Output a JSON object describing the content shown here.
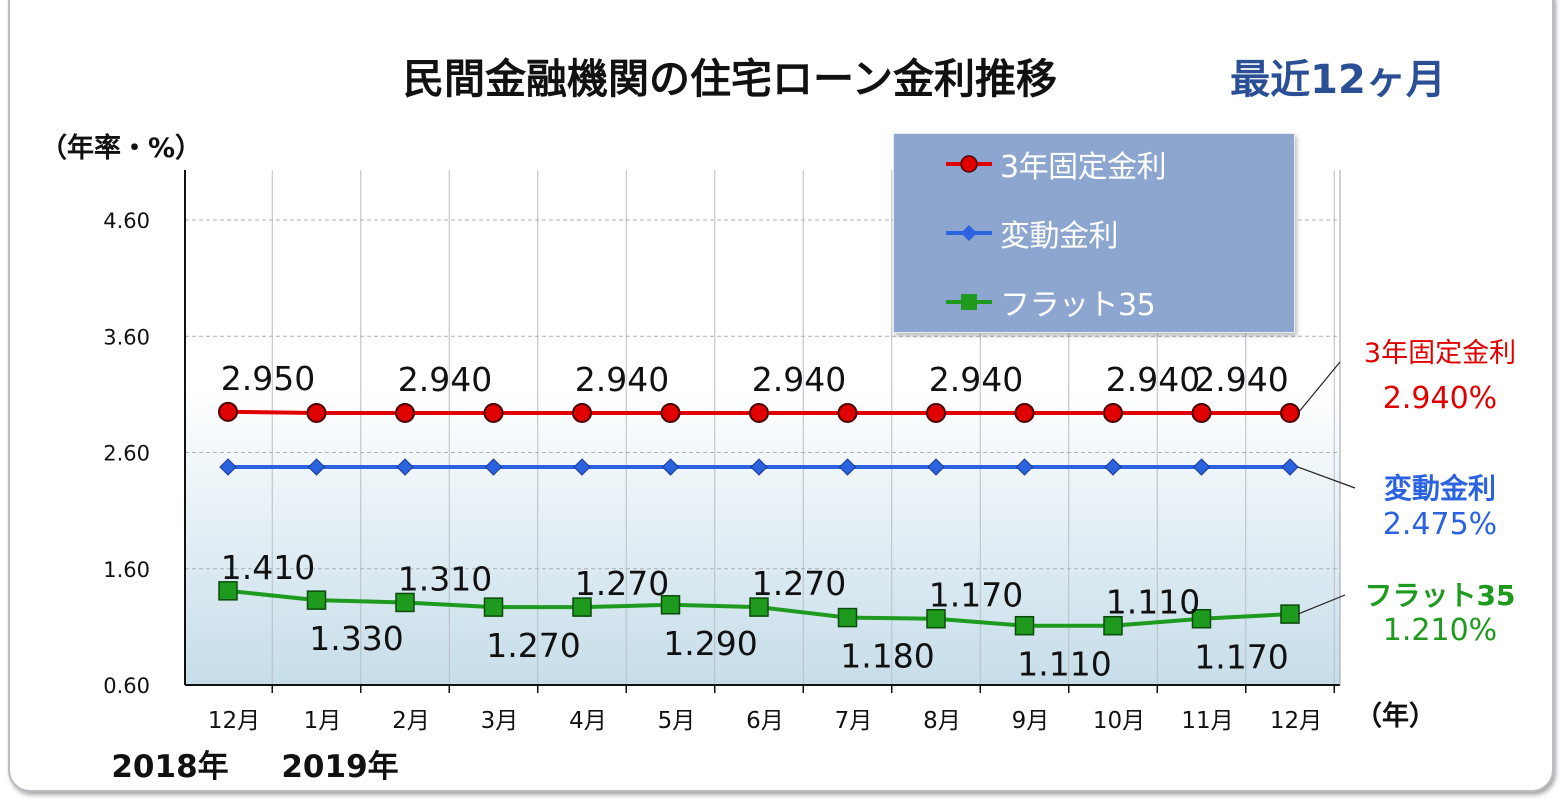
{
  "chart_data": {
    "type": "line",
    "title": "民間金融機関の住宅ローン金利推移",
    "subtitle": "最近12ヶ月",
    "ylabel": "（年率・%）",
    "xlabel": "（年）",
    "ylim": [
      0.6,
      4.6
    ],
    "yticks": [
      "0.60",
      "1.60",
      "2.60",
      "3.60",
      "4.60"
    ],
    "categories": [
      "12月",
      "1月",
      "2月",
      "3月",
      "4月",
      "5月",
      "6月",
      "7月",
      "8月",
      "9月",
      "10月",
      "11月",
      "12月"
    ],
    "year_labels": [
      "2018年",
      "2019年"
    ],
    "grid": true,
    "legend_position": "top-right",
    "series": [
      {
        "name": "3年固定金利",
        "color": "#e00000",
        "marker": "circle",
        "values": [
          2.95,
          2.94,
          2.94,
          2.94,
          2.94,
          2.94,
          2.94,
          2.94,
          2.94,
          2.94,
          2.94,
          2.94,
          2.94
        ],
        "data_labels": [
          {
            "i": 0,
            "text": "2.950"
          },
          {
            "i": 2,
            "text": "2.940"
          },
          {
            "i": 4,
            "text": "2.940"
          },
          {
            "i": 6,
            "text": "2.940"
          },
          {
            "i": 8,
            "text": "2.940"
          },
          {
            "i": 10,
            "text": "2.940"
          },
          {
            "i": 11,
            "text": "2.940"
          }
        ],
        "callout": {
          "name": "3年固定金利",
          "value": "2.940%"
        }
      },
      {
        "name": "変動金利",
        "color": "#2a62e0",
        "marker": "diamond",
        "values": [
          2.475,
          2.475,
          2.475,
          2.475,
          2.475,
          2.475,
          2.475,
          2.475,
          2.475,
          2.475,
          2.475,
          2.475,
          2.475
        ],
        "data_labels": [],
        "callout": {
          "name": "変動金利",
          "value": "2.475%"
        }
      },
      {
        "name": "フラット35",
        "color": "#1e9a1e",
        "marker": "square",
        "values": [
          1.41,
          1.33,
          1.31,
          1.27,
          1.27,
          1.29,
          1.27,
          1.18,
          1.17,
          1.11,
          1.11,
          1.17,
          1.21
        ],
        "data_labels": [
          {
            "i": 0,
            "text": "1.410",
            "pos": "above"
          },
          {
            "i": 1,
            "text": "1.330",
            "pos": "below"
          },
          {
            "i": 2,
            "text": "1.310",
            "pos": "above"
          },
          {
            "i": 3,
            "text": "1.270",
            "pos": "below"
          },
          {
            "i": 4,
            "text": "1.270",
            "pos": "above"
          },
          {
            "i": 5,
            "text": "1.290",
            "pos": "below"
          },
          {
            "i": 6,
            "text": "1.270",
            "pos": "above"
          },
          {
            "i": 7,
            "text": "1.180",
            "pos": "below"
          },
          {
            "i": 8,
            "text": "1.170",
            "pos": "above"
          },
          {
            "i": 9,
            "text": "1.110",
            "pos": "below"
          },
          {
            "i": 10,
            "text": "1.110",
            "pos": "above"
          },
          {
            "i": 11,
            "text": "1.170",
            "pos": "below"
          }
        ],
        "callout": {
          "name": "フラット35",
          "value": "1.210%"
        }
      }
    ]
  }
}
